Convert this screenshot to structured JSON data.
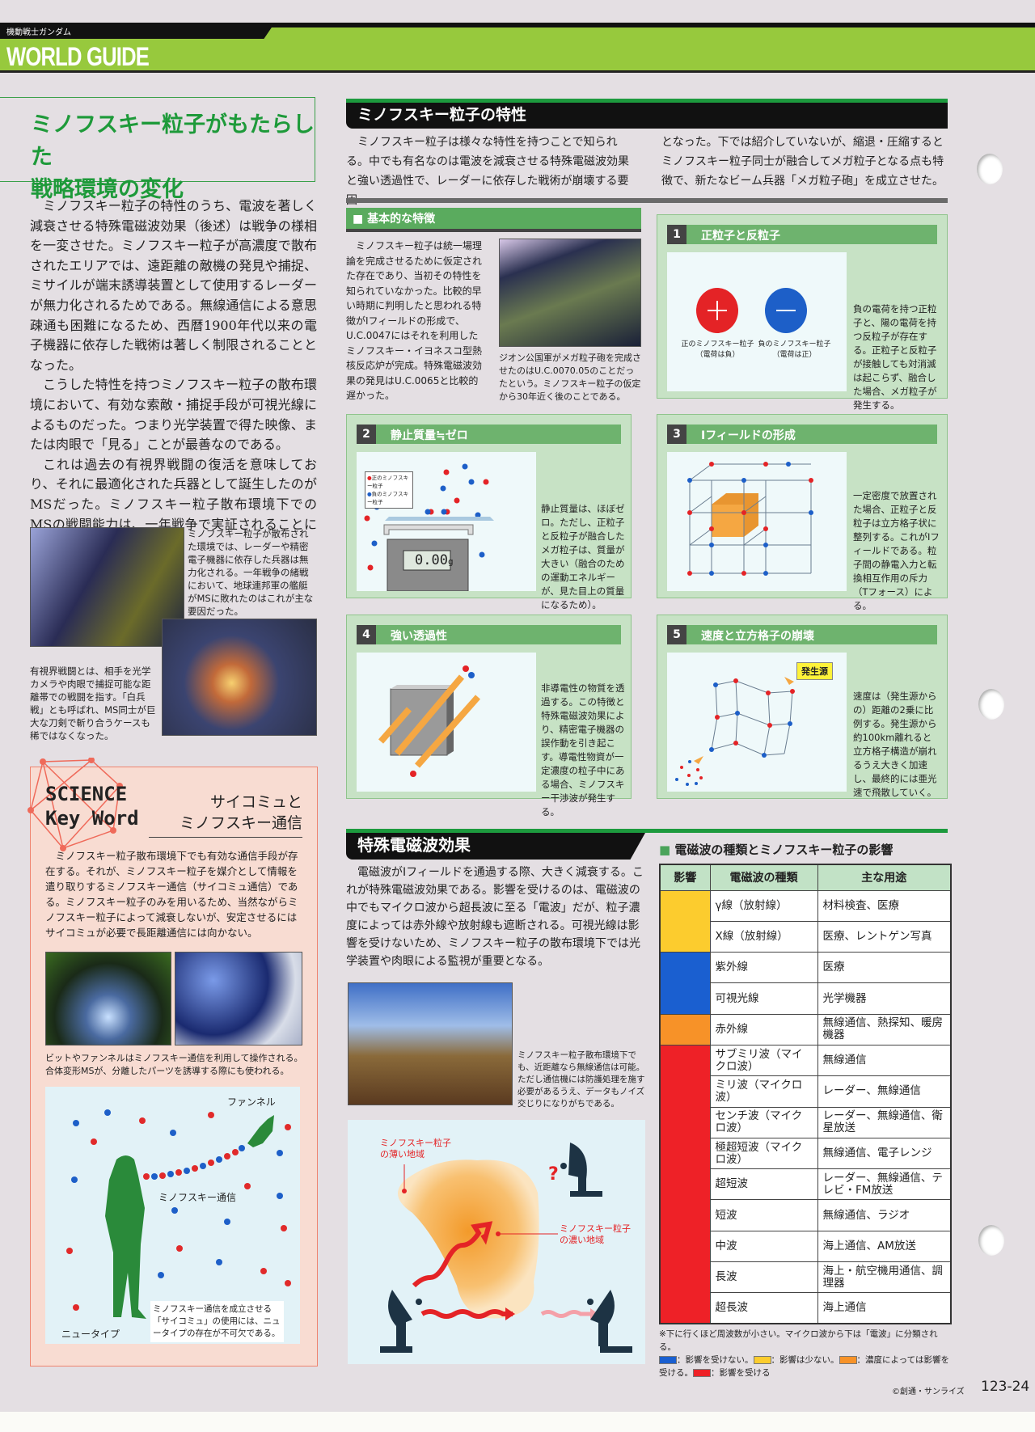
{
  "header": {
    "series": "機動戦士ガンダム",
    "title": "WORLD GUIDE"
  },
  "left": {
    "title_lines": [
      "ミノフスキー粒子がもたらした",
      "戦略環境の変化"
    ],
    "paragraphs": [
      "ミノフスキー粒子の特性のうち、電波を著しく減衰させる特殊電磁波効果（後述）は戦争の様相を一変させた。ミノフスキー粒子が高濃度で散布されたエリアでは、遠距離の敵機の発見や捕捉、ミサイルが端末誘導装置として使用するレーダーが無力化されるためである。無線通信による意思疎通も困難になるため、西暦1900年代以来の電子機器に依存した戦術は著しく制限されることとなった。",
      "こうした特性を持つミノフスキー粒子の散布環境において、有効な索敵・捕捉手段が可視光線によるものだった。つまり光学装置で得た映像、または肉眼で「見る」ことが最善なのである。",
      "これは過去の有視界戦闘の復活を意味しており、それに最適化された兵器として誕生したのがMSだった。ミノフスキー粒子散布環境下でのMSの戦闘能力は、一年戦争で実証されることになる。"
    ],
    "caption1": "ミノフスキー粒子が散布された環境では、レーダーや精密電子機器に依存した兵器は無力化される。一年戦争の緒戦において、地球連邦軍の艦艇がMSに敗れたのはこれが主な要因だった。",
    "caption2": "有視界戦闘とは、相手を光学カメラや肉眼で捕捉可能な距離帯での戦闘を指す。「白兵戦」とも呼ばれ、MS同士が巨大な刀剣で斬り合うケースも稀ではなくなった。"
  },
  "science": {
    "badge_line1": "SCIENCE",
    "badge_line2": "Key Word",
    "title_lines": [
      "サイコミュと",
      "ミノフスキー通信"
    ],
    "body": "ミノフスキー粒子散布環境下でも有効な通信手段が存在する。それが、ミノフスキー粒子を媒介として情報を遣り取りするミノフスキー通信（サイコミュ通信）である。ミノフスキー粒子のみを用いるため、当然ながらミノフスキー粒子によって減衰しないが、安定させるにはサイコミュが必要で長距離通信には向かない。",
    "photo_caption": "ビットやファンネルはミノフスキー通信を利用して操作される。合体変形MSが、分離したパーツを誘導する際にも使われる。",
    "diagram": {
      "funnel": "ファンネル",
      "link": "ミノフスキー通信",
      "newtype": "ニュータイプ",
      "note": "ミノフスキー通信を成立させる「サイコミュ」の使用には、ニュータイプの存在が不可欠である。"
    }
  },
  "properties": {
    "title": "ミノフスキー粒子の特性",
    "intro_left": "ミノフスキー粒子は様々な特性を持つことで知られる。中でも有名なのは電波を減衰させる特殊電磁波効果と強い透過性で、レーダーに依存した戦術が崩壊する要因",
    "intro_right": "となった。下では紹介していないが、縮退・圧縮するとミノフスキー粒子同士が融合してメガ粒子となる点も特徴で、新たなビーム兵器「メガ粒子砲」を成立させた。",
    "basic": {
      "title": "基本的な特徴",
      "text": "ミノフスキー粒子は統一場理論を完成させるために仮定された存在であり、当初その特性を知られていなかった。比較的早い時期に判明したと思われる特徴がIフィールドの形成で、U.C.0047にはそれを利用したミノフスキー・イヨネスコ型熱核反応炉が完成。特殊電磁波効果の発見はU.C.0065と比較的遅かった。",
      "photo_caption": "ジオン公国軍がメガ粒子砲を完成させたのはU.C.0070.05のことだったという。ミノフスキー粒子の仮定から30年近く後のことである。"
    },
    "boxes": [
      {
        "num": "1",
        "title": "正粒子と反粒子",
        "text": "負の電荷を持つ正粒子と、陽の電荷を持つ反粒子が存在する。正粒子と反粒子が接触しても対消滅は起こらず、融合した場合、メガ粒子が発生する。",
        "label_pos": "正のミノフスキー粒子",
        "label_pos_sub": "（電荷は負）",
        "label_neg": "負のミノフスキー粒子",
        "label_neg_sub": "（電荷は正）"
      },
      {
        "num": "2",
        "title": "静止質量≒ゼロ",
        "text": "静止質量は、ほぼゼロ。ただし、正粒子と反粒子が融合したメガ粒子は、質量が大きい（融合のための運動エネルギーが、見た目上の質量になるため）。",
        "legend_pos": "正のミノフスキー粒子",
        "legend_neg": "負のミノフスキー粒子",
        "scale_value": "0.00",
        "scale_unit": "g"
      },
      {
        "num": "3",
        "title": "Iフィールドの形成",
        "text": "一定密度で放置された場合、正粒子と反粒子は立方格子状に整列する。これがIフィールドである。粒子間の静電入力と転換相互作用の斥力（Tフォース）による。"
      },
      {
        "num": "4",
        "title": "強い透過性",
        "text": "非導電性の物質を透過する。この特徴と特殊電磁波効果により、精密電子機器の誤作動を引き起こす。導電性物資が一定濃度の粒子中にある場合、ミノフスキー干渉波が発生する。"
      },
      {
        "num": "5",
        "title": "速度と立方格子の崩壊",
        "text": "速度は（発生源からの）距離の2乗に比例する。発生源から約100km離れると立方格子構造が崩れるうえ大きく加速し、最終的には亜光速で飛散していく。",
        "source_label": "発生源"
      }
    ]
  },
  "em_effect": {
    "title": "特殊電磁波効果",
    "body": "電磁波がIフィールドを通過する際、大きく減衰する。これが特殊電磁波効果である。影響を受けるのは、電磁波の中でもマイクロ波から超長波に至る「電波」だが、粒子濃度によっては赤外線や放射線も遮断される。可視光線は影響を受けないため、ミノフスキー粒子の散布環境下では光学装置や肉眼による監視が重要となる。",
    "photo_caption": "ミノフスキー粒子散布環境下でも、近距離なら無線通信は可能。ただし通信機には防護処理を施す必要があるうえ、データもノイズ交じりになりがちである。",
    "diagram": {
      "thin_label": "ミノフスキー粒子の薄い地域",
      "dense_label": "ミノフスキー粒子の濃い地域",
      "question": "?"
    }
  },
  "table": {
    "title": "電磁波の種類とミノフスキー粒子の影響",
    "headers": [
      "影響",
      "電磁波の種類",
      "主な用途"
    ],
    "impact_colors": {
      "none": "#1a5fd0",
      "low": "#fccc2e",
      "partial": "#f79228",
      "affected": "#ee2127"
    },
    "rows": [
      {
        "type": "γ線（放射線）",
        "use": "材料検査、医療",
        "impact": "low"
      },
      {
        "type": "X線（放射線）",
        "use": "医療、レントゲン写真",
        "impact": "low"
      },
      {
        "type": "紫外線",
        "use": "医療",
        "impact": "none"
      },
      {
        "type": "可視光線",
        "use": "光学機器",
        "impact": "none"
      },
      {
        "type": "赤外線",
        "use": "無線通信、熱探知、暖房機器",
        "impact": "partial"
      },
      {
        "type": "サブミリ波（マイクロ波）",
        "use": "無線通信",
        "impact": "affected"
      },
      {
        "type": "ミリ波（マイクロ波）",
        "use": "レーダー、無線通信",
        "impact": "affected"
      },
      {
        "type": "センチ波（マイクロ波）",
        "use": "レーダー、無線通信、衛星放送",
        "impact": "affected"
      },
      {
        "type": "極超短波（マイクロ波）",
        "use": "無線通信、電子レンジ",
        "impact": "affected"
      },
      {
        "type": "超短波",
        "use": "レーダー、無線通信、テレビ・FM放送",
        "impact": "affected"
      },
      {
        "type": "短波",
        "use": "無線通信、ラジオ",
        "impact": "affected"
      },
      {
        "type": "中波",
        "use": "海上通信、AM放送",
        "impact": "affected"
      },
      {
        "type": "長波",
        "use": "海上・航空機用通信、調理器",
        "impact": "affected"
      },
      {
        "type": "超長波",
        "use": "海上通信",
        "impact": "affected"
      }
    ],
    "note": "※下に行くほど周波数が小さい。マイクロ波から下は「電波」に分類される。",
    "legend": [
      {
        "impact": "none",
        "label": "：影響を受けない。"
      },
      {
        "impact": "low",
        "label": "：影響は少ない。"
      },
      {
        "impact": "partial",
        "label": "：濃度によっては影響を受ける。"
      },
      {
        "impact": "affected",
        "label": "：影響を受ける"
      }
    ]
  },
  "footer": {
    "copyright": "©創通・サンライズ",
    "page": "123-24"
  }
}
